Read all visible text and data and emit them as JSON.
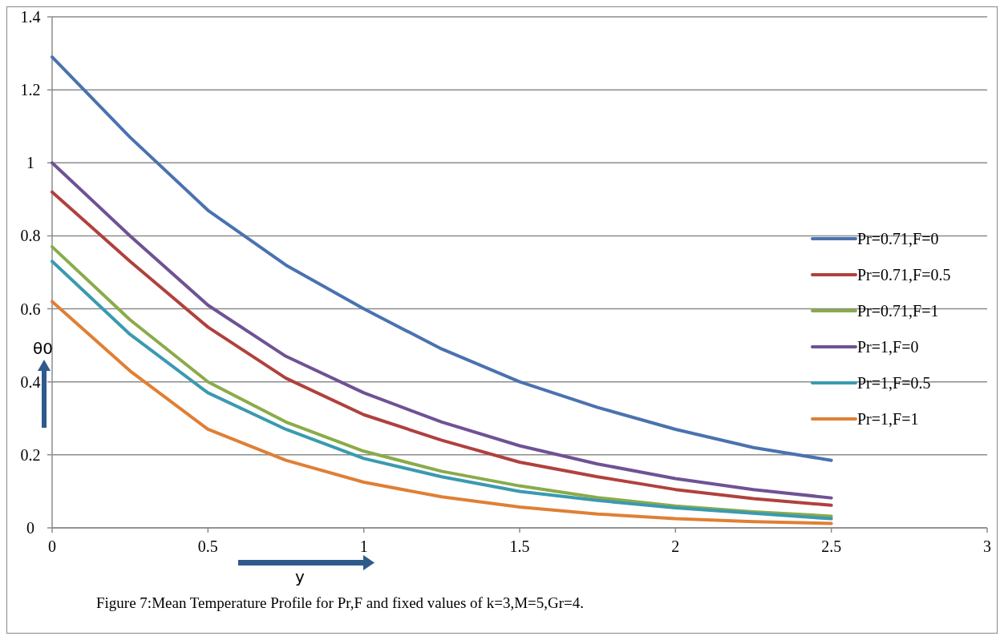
{
  "chart_data": {
    "type": "line",
    "xlabel": "y",
    "ylabel": "θ0",
    "annotations": [
      "Figure 7:Mean Temperature Profile for Pr,F and fixed values of k=3,M=5,Gr=4."
    ],
    "x": [
      0,
      0.25,
      0.5,
      0.75,
      1,
      1.25,
      1.5,
      1.75,
      2,
      2.25,
      2.5
    ],
    "series": [
      {
        "name": "Pr=0.71,F=0",
        "color": "#4a72b0",
        "values": [
          1.29,
          1.07,
          0.87,
          0.72,
          0.6,
          0.49,
          0.4,
          0.33,
          0.27,
          0.22,
          0.185
        ]
      },
      {
        "name": "Pr=0.71,F=0.5",
        "color": "#b0413e",
        "values": [
          0.92,
          0.73,
          0.55,
          0.41,
          0.31,
          0.24,
          0.18,
          0.14,
          0.105,
          0.08,
          0.062
        ]
      },
      {
        "name": "Pr=0.71,F=1",
        "color": "#8aab4a",
        "values": [
          0.77,
          0.57,
          0.4,
          0.29,
          0.21,
          0.155,
          0.115,
          0.083,
          0.06,
          0.044,
          0.032
        ]
      },
      {
        "name": "Pr=1,F=0",
        "color": "#6f5294",
        "values": [
          1.0,
          0.8,
          0.61,
          0.47,
          0.37,
          0.29,
          0.225,
          0.175,
          0.135,
          0.105,
          0.082
        ]
      },
      {
        "name": "Pr=1,F=0.5",
        "color": "#3a9ab0",
        "values": [
          0.73,
          0.53,
          0.37,
          0.27,
          0.19,
          0.14,
          0.1,
          0.075,
          0.055,
          0.04,
          0.025
        ]
      },
      {
        "name": "Pr=1,F=1",
        "color": "#e07f35",
        "values": [
          0.62,
          0.43,
          0.27,
          0.185,
          0.125,
          0.085,
          0.057,
          0.038,
          0.025,
          0.017,
          0.012
        ]
      }
    ],
    "xlim": [
      0,
      3
    ],
    "xticks": [
      0,
      0.5,
      1,
      1.5,
      2,
      2.5,
      3
    ],
    "ylim": [
      0,
      1.4
    ],
    "yticks": [
      0,
      0.2,
      0.4,
      0.6,
      0.8,
      1,
      1.2,
      1.4
    ],
    "grid": "y",
    "legend": "right",
    "marker": "none",
    "line_style": "solid"
  }
}
